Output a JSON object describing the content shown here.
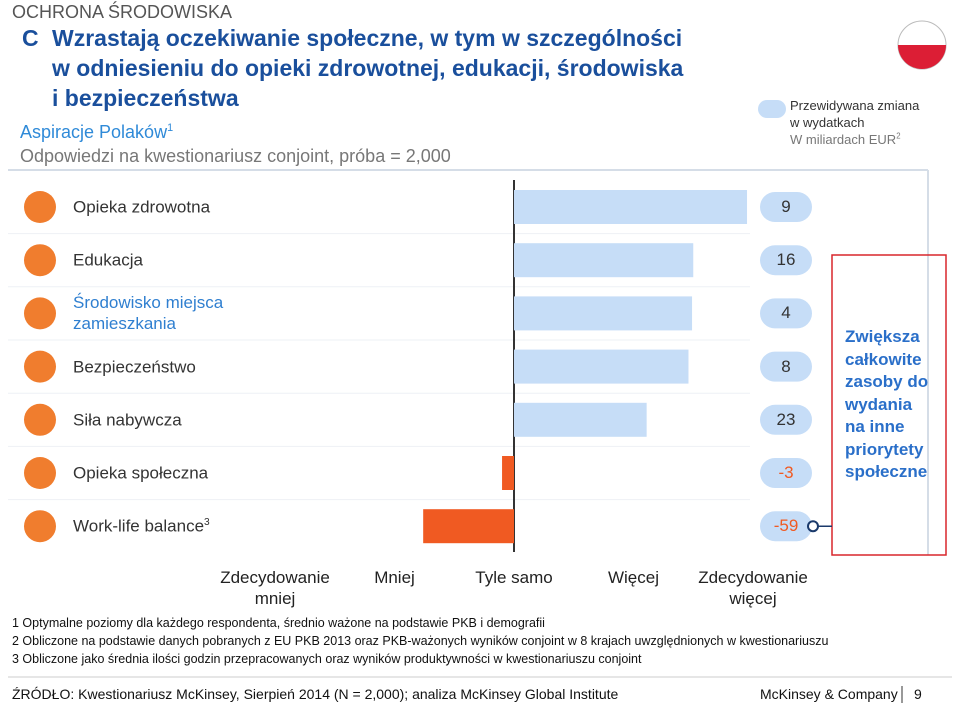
{
  "section": "OCHRONA ŚRODOWISKA",
  "chart_data": {
    "type": "bar",
    "orientation": "horizontal",
    "letter": "C",
    "title": [
      "Wzrastają oczekiwanie społeczne, w tym w szczególności",
      "w odniesieniu do opieki zdrowotnej, edukacji, środowiska",
      "i bezpieczeństwa"
    ],
    "subtitle": "Aspiracje Polaków",
    "subtitle_note": "1",
    "description": "Odpowiedzi na kwestionariusz conjoint, próba = 2,000",
    "categories": [
      "Opieka zdrowotna",
      "Edukacja",
      "Środowisko miejsca zamieszkania",
      "Bezpieczeństwo",
      "Siła nabywcza",
      "Opieka społeczna",
      "Work-life balance"
    ],
    "category_notes": {
      "6": "3"
    },
    "values": [
      1.95,
      1.5,
      1.49,
      1.46,
      1.11,
      -0.1,
      -0.76
    ],
    "color": "#c6ddf7",
    "negative_color": "#f05a22",
    "xlim": [
      -2,
      2
    ],
    "xticks": [
      {
        "value": -2,
        "label": "Zdecydowanie mniej"
      },
      {
        "value": -1,
        "label": "Mniej"
      },
      {
        "value": 0,
        "label": "Tyle samo"
      },
      {
        "value": 1,
        "label": "Więcej"
      },
      {
        "value": 2,
        "label": "Zdecydowanie więcej"
      }
    ],
    "spending": {
      "label": [
        "Przewidywana zmiana",
        "w wydatkach"
      ],
      "unit": "W miliardach EUR",
      "unit_note": "2",
      "values": [
        9,
        16,
        4,
        8,
        23,
        -3,
        -59
      ]
    },
    "callout": [
      "Zwiększa",
      "całkowite",
      "zasoby do",
      "wydania",
      "na inne",
      "priorytety",
      "społeczne"
    ]
  },
  "footnotes": [
    "1 Optymalne poziomy dla każdego respondenta, średnio ważone na podstawie PKB i demografii",
    "2 Obliczone na podstawie danych pobranych z EU PKB 2013 oraz PKB-ważonych wyników conjoint w 8 krajach uwzględnionych w kwestionariuszu",
    "3 Obliczone jako średnia ilości godzin przepracowanych oraz wyników produktywności w kwestionariuszu conjoint"
  ],
  "source": "ŹRÓDŁO: Kwestionariusz McKinsey, Sierpień 2014 (N = 2,000); analiza McKinsey Global Institute",
  "brand": "McKinsey & Company",
  "page": "9"
}
